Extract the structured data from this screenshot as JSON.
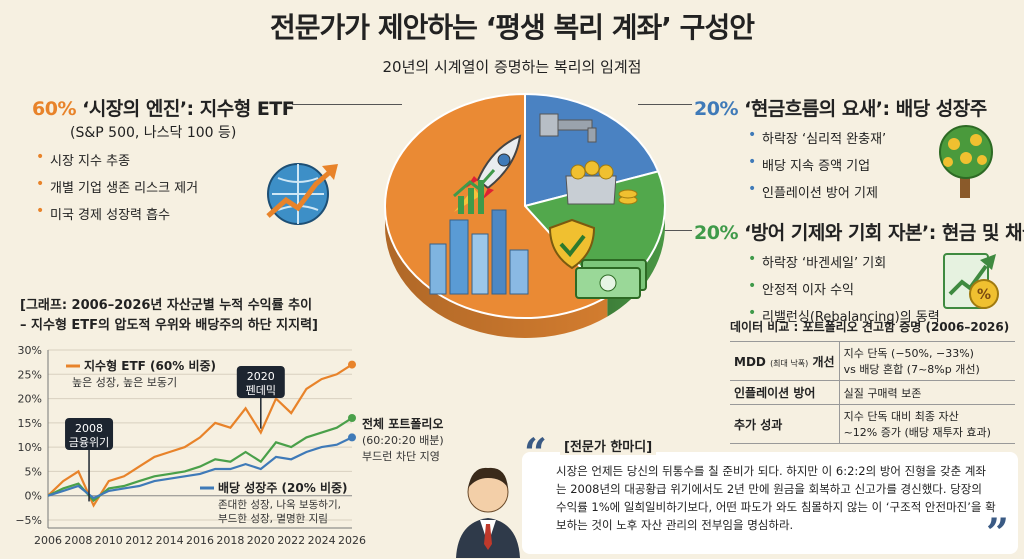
{
  "title": "전문가가 제안하는 ‘평생 복리 계좌’ 구성안",
  "subtitle": "20년의 시계열이 증명하는 복리의 임계점",
  "etf": {
    "pct": "60%",
    "head": "‘시장의 엔진’: 지수형 ETF",
    "sub": "(S&P 500, 나스닥 100 등)",
    "bullets": [
      "시장 지수 추종",
      "개별 기업 생존 리스크 제거",
      "미국 경제 성장력 흡수"
    ]
  },
  "dividend": {
    "pct": "20%",
    "head": "‘현금흐름의 요새’: 배당 성장주",
    "bullets": [
      "하락장 ‘심리적 완충재’",
      "배당 지속 증액 기업",
      "인플레이션 방어 기제"
    ]
  },
  "cash": {
    "pct": "20%",
    "head": "‘방어 기제와 기회 자본’: 현금 및 채권",
    "bullets": [
      "하락장 ‘바겐세일’ 기회",
      "안정적 이자 수익",
      "리밸런싱(Rebalancing)의 동력"
    ]
  },
  "graph": {
    "title_line1": "[그래프: 2006–2026년 자산군별 누적 수익률 추이",
    "title_line2": " – 지수형 ETF의 압도적 우위와 배당주의 하단 지지력]"
  },
  "chart_data": {
    "type": "line",
    "x": [
      2006,
      2007,
      2008,
      2009,
      2010,
      2011,
      2012,
      2013,
      2014,
      2015,
      2016,
      2017,
      2018,
      2019,
      2020,
      2021,
      2022,
      2023,
      2024,
      2025,
      2026
    ],
    "xticks": [
      "2006",
      "2008",
      "2010",
      "2012",
      "2014",
      "2016",
      "2018",
      "2020",
      "2022",
      "2024",
      "2026"
    ],
    "yticks": [
      "30%",
      "25%",
      "20%",
      "15%",
      "10%",
      "5%",
      "0%",
      "−5%"
    ],
    "ylim": [
      -5,
      30
    ],
    "series": [
      {
        "name": "지수형 ETF (60% 비중)",
        "desc": "높은 성장, 높은 보동기",
        "color": "#e8832a",
        "values": [
          0,
          3,
          5,
          -2,
          3,
          4,
          6,
          8,
          9,
          10,
          12,
          15,
          14,
          18,
          13,
          20,
          17,
          22,
          24,
          25,
          27
        ]
      },
      {
        "name": "전체 포트폴리오",
        "desc1": "(60:20:20 배분)",
        "desc2": "부드런 차단 지영",
        "color": "#4aa04a",
        "values": [
          0,
          1.5,
          2.5,
          -1,
          1.5,
          2,
          3,
          4,
          4.5,
          5,
          6,
          7.5,
          7,
          9,
          7,
          11,
          10,
          12,
          13,
          14,
          16
        ]
      },
      {
        "name": "배당 성장주 (20% 비중)",
        "desc1": "존대한 성장, 나옥 보동하기,",
        "desc2": "부드한 성장, 멸명한 지림",
        "color": "#3f7ab8",
        "values": [
          0,
          1,
          2,
          -0.5,
          1,
          1.5,
          2,
          3,
          3.5,
          4,
          4.5,
          5.5,
          5.5,
          6.5,
          5.5,
          8,
          7.5,
          9,
          10,
          10.5,
          12
        ]
      }
    ],
    "annotations": [
      {
        "label": "2008\n금융위기",
        "x": 2008.7
      },
      {
        "label": "2020\n펜데믹",
        "x": 2020
      }
    ]
  },
  "table": {
    "title": "데이터 비교 : 포트폴리오 견고함 증명 (2006–2026)",
    "rows": [
      {
        "key": "MDD",
        "key_small": "(최대 낙폭)",
        "key_tail": "개선",
        "v1": "지수 단독 (−50%, −33%)",
        "v2": "vs 배당 혼합 (7~8%p 개선)"
      },
      {
        "key": "인플레이션 방어",
        "key_small": "",
        "key_tail": "",
        "v1": "실질 구매력 보존",
        "v2": ""
      },
      {
        "key": "추가 성과",
        "key_small": "",
        "key_tail": "",
        "v1": "지수 단독 대비 최종 자산",
        "v2": "~12% 증가 (배당 재투자 효과)"
      }
    ]
  },
  "quote": {
    "label": "[전문가 한마디]",
    "text": "시장은 언제든 당신의 뒤통수를 칠 준비가 되다. 하지만 이 6:2:2의 방어 진형을 갖춘 계좌는 2008년의 대공황급 위기에서도 2년 만에 원금을 회복하고 신고가를 경신했다. 당장의 수익률 1%에 일희일비하기보다, 어떤 파도가 와도 침몰하지 않는 이 ‘구조적 안전마진’을 확보하는 것이 노후 자산 관리의 전부임을 명심하라.",
    "open_mark": "“",
    "close_mark": "”"
  },
  "pie": {
    "slices": [
      {
        "name": "지수형 ETF",
        "value": 60,
        "color": "#ea8a34"
      },
      {
        "name": "배당 성장주",
        "value": 20,
        "color": "#4a82c2"
      },
      {
        "name": "현금 및 채권",
        "value": 20,
        "color": "#52a84c"
      }
    ]
  }
}
